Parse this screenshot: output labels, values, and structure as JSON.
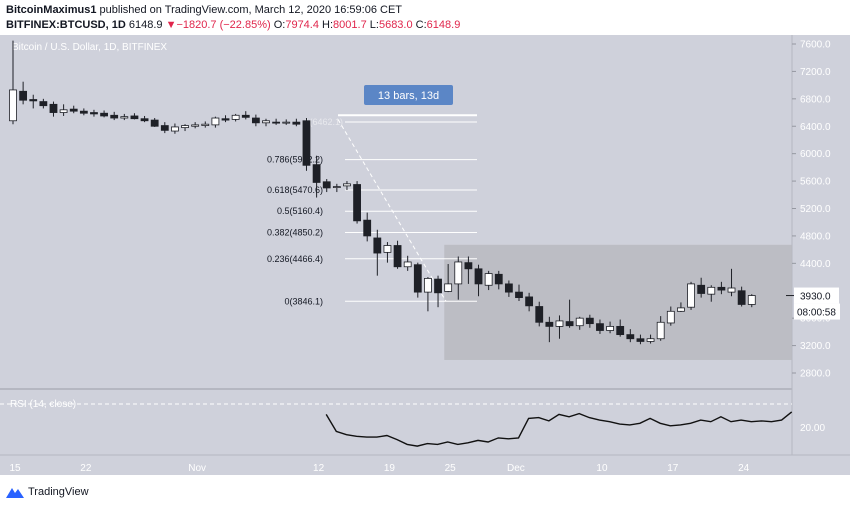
{
  "header": {
    "author": "BitcoinMaximus1",
    "published": "published on TradingView.com, March 12, 2020 16:59:06 CET",
    "symbol": "BITFINEX:BTCUSD, 1D",
    "last": "6148.9",
    "change": "−1820.7 (−22.85%)",
    "o_label": "O:",
    "o": "7974.4",
    "h_label": "H:",
    "h": "8001.7",
    "l_label": "L:",
    "l": "5683.0",
    "c_label": "C:",
    "c": "6148.9"
  },
  "colors": {
    "background": "#cfd1db",
    "bearish": "#1e2027",
    "bullish": "#ffffff",
    "range_box": "#b9bac0",
    "measure_label": "#5b86c6",
    "rsi_line": "#111111",
    "red": "#e0264c"
  },
  "footer": {
    "brand": "TradingView"
  },
  "chart_data": {
    "type": "candlestick",
    "title": "Bitcoin / U.S. Dollar, 1D, BITFINEX",
    "price_axis_ticks": [
      7600,
      7200,
      6800,
      6400,
      6000,
      5600,
      5200,
      4800,
      4400,
      3600,
      3200,
      2800
    ],
    "price_axis_label_values": [
      "7600.0",
      "7200.0",
      "6800.0",
      "6400.0",
      "6000.0",
      "5600.0",
      "5200.0",
      "4800.0",
      "4400.0",
      "3600.0",
      "3200.0",
      "2800.0"
    ],
    "ylim": [
      2600,
      7800
    ],
    "time_axis_labels": [
      "15",
      "22",
      "Nov",
      "12",
      "19",
      "25",
      "Dec",
      "10",
      "17",
      "24"
    ],
    "current_price_label": "3930.0",
    "countdown_label": "08:00:58",
    "measure_label": "13 bars, 13d",
    "fib_levels": [
      {
        "label": "0.786(5912.2)",
        "value": 5912.2
      },
      {
        "label": "0.618(5470.6)",
        "value": 5470.6
      },
      {
        "label": "0.5(5160.4)",
        "value": 5160.4
      },
      {
        "label": "0.382(4850.2)",
        "value": 4850.2
      },
      {
        "label": "0.236(4466.4)",
        "value": 4466.4
      },
      {
        "label": "0(3846.1)",
        "value": 3846.1
      }
    ],
    "fib_top_label": "1(6462.1)",
    "fib_top_value": 6462.1,
    "range_box": {
      "price_top": 4670,
      "price_bottom": 2990
    },
    "candles": [
      {
        "o": 6480,
        "h": 7650,
        "l": 6430,
        "c": 6930
      },
      {
        "o": 6910,
        "h": 7050,
        "l": 6720,
        "c": 6780
      },
      {
        "o": 6790,
        "h": 6860,
        "l": 6660,
        "c": 6770
      },
      {
        "o": 6760,
        "h": 6800,
        "l": 6660,
        "c": 6700
      },
      {
        "o": 6720,
        "h": 6760,
        "l": 6540,
        "c": 6600
      },
      {
        "o": 6600,
        "h": 6720,
        "l": 6550,
        "c": 6640
      },
      {
        "o": 6650,
        "h": 6700,
        "l": 6590,
        "c": 6620
      },
      {
        "o": 6620,
        "h": 6660,
        "l": 6560,
        "c": 6590
      },
      {
        "o": 6600,
        "h": 6640,
        "l": 6540,
        "c": 6580
      },
      {
        "o": 6590,
        "h": 6630,
        "l": 6530,
        "c": 6550
      },
      {
        "o": 6560,
        "h": 6610,
        "l": 6490,
        "c": 6520
      },
      {
        "o": 6520,
        "h": 6580,
        "l": 6490,
        "c": 6540
      },
      {
        "o": 6550,
        "h": 6590,
        "l": 6500,
        "c": 6510
      },
      {
        "o": 6510,
        "h": 6550,
        "l": 6460,
        "c": 6480
      },
      {
        "o": 6490,
        "h": 6520,
        "l": 6390,
        "c": 6400
      },
      {
        "o": 6410,
        "h": 6460,
        "l": 6300,
        "c": 6340
      },
      {
        "o": 6330,
        "h": 6440,
        "l": 6290,
        "c": 6390
      },
      {
        "o": 6380,
        "h": 6430,
        "l": 6330,
        "c": 6410
      },
      {
        "o": 6400,
        "h": 6460,
        "l": 6370,
        "c": 6420
      },
      {
        "o": 6410,
        "h": 6470,
        "l": 6380,
        "c": 6430
      },
      {
        "o": 6420,
        "h": 6540,
        "l": 6380,
        "c": 6520
      },
      {
        "o": 6510,
        "h": 6560,
        "l": 6460,
        "c": 6490
      },
      {
        "o": 6500,
        "h": 6580,
        "l": 6470,
        "c": 6560
      },
      {
        "o": 6560,
        "h": 6620,
        "l": 6500,
        "c": 6530
      },
      {
        "o": 6520,
        "h": 6570,
        "l": 6400,
        "c": 6450
      },
      {
        "o": 6450,
        "h": 6510,
        "l": 6400,
        "c": 6480
      },
      {
        "o": 6460,
        "h": 6510,
        "l": 6420,
        "c": 6450
      },
      {
        "o": 6450,
        "h": 6500,
        "l": 6420,
        "c": 6460
      },
      {
        "o": 6460,
        "h": 6510,
        "l": 6400,
        "c": 6430
      },
      {
        "o": 6480,
        "h": 6520,
        "l": 5750,
        "c": 5830
      },
      {
        "o": 5840,
        "h": 5970,
        "l": 5360,
        "c": 5580
      },
      {
        "o": 5590,
        "h": 5630,
        "l": 5440,
        "c": 5500
      },
      {
        "o": 5510,
        "h": 5560,
        "l": 5440,
        "c": 5520
      },
      {
        "o": 5530,
        "h": 5600,
        "l": 5470,
        "c": 5560
      },
      {
        "o": 5550,
        "h": 5600,
        "l": 4980,
        "c": 5020
      },
      {
        "o": 5030,
        "h": 5140,
        "l": 4720,
        "c": 4800
      },
      {
        "o": 4770,
        "h": 4890,
        "l": 4220,
        "c": 4550
      },
      {
        "o": 4560,
        "h": 4710,
        "l": 4410,
        "c": 4660
      },
      {
        "o": 4660,
        "h": 4730,
        "l": 4320,
        "c": 4350
      },
      {
        "o": 4350,
        "h": 4510,
        "l": 4290,
        "c": 4420
      },
      {
        "o": 4380,
        "h": 4410,
        "l": 3900,
        "c": 3980
      },
      {
        "o": 3980,
        "h": 4200,
        "l": 3700,
        "c": 4180
      },
      {
        "o": 4170,
        "h": 4220,
        "l": 3760,
        "c": 3970
      },
      {
        "o": 3990,
        "h": 4390,
        "l": 3980,
        "c": 4100
      },
      {
        "o": 4100,
        "h": 4500,
        "l": 3870,
        "c": 4420
      },
      {
        "o": 4410,
        "h": 4500,
        "l": 4100,
        "c": 4320
      },
      {
        "o": 4320,
        "h": 4380,
        "l": 3920,
        "c": 4100
      },
      {
        "o": 4080,
        "h": 4290,
        "l": 4010,
        "c": 4250
      },
      {
        "o": 4240,
        "h": 4290,
        "l": 4020,
        "c": 4100
      },
      {
        "o": 4100,
        "h": 4150,
        "l": 3910,
        "c": 3980
      },
      {
        "o": 3980,
        "h": 4090,
        "l": 3850,
        "c": 3900
      },
      {
        "o": 3910,
        "h": 3970,
        "l": 3700,
        "c": 3780
      },
      {
        "o": 3770,
        "h": 3840,
        "l": 3480,
        "c": 3540
      },
      {
        "o": 3540,
        "h": 3620,
        "l": 3250,
        "c": 3480
      },
      {
        "o": 3480,
        "h": 3640,
        "l": 3300,
        "c": 3560
      },
      {
        "o": 3550,
        "h": 3870,
        "l": 3460,
        "c": 3490
      },
      {
        "o": 3490,
        "h": 3620,
        "l": 3430,
        "c": 3600
      },
      {
        "o": 3600,
        "h": 3650,
        "l": 3460,
        "c": 3520
      },
      {
        "o": 3520,
        "h": 3580,
        "l": 3370,
        "c": 3420
      },
      {
        "o": 3420,
        "h": 3550,
        "l": 3380,
        "c": 3480
      },
      {
        "o": 3480,
        "h": 3580,
        "l": 3330,
        "c": 3360
      },
      {
        "o": 3360,
        "h": 3440,
        "l": 3250,
        "c": 3300
      },
      {
        "o": 3300,
        "h": 3360,
        "l": 3220,
        "c": 3260
      },
      {
        "o": 3260,
        "h": 3360,
        "l": 3230,
        "c": 3300
      },
      {
        "o": 3300,
        "h": 3630,
        "l": 3270,
        "c": 3540
      },
      {
        "o": 3530,
        "h": 3770,
        "l": 3490,
        "c": 3700
      },
      {
        "o": 3700,
        "h": 3830,
        "l": 3690,
        "c": 3750
      },
      {
        "o": 3760,
        "h": 4130,
        "l": 3720,
        "c": 4100
      },
      {
        "o": 4080,
        "h": 4190,
        "l": 3900,
        "c": 3960
      },
      {
        "o": 3950,
        "h": 4080,
        "l": 3840,
        "c": 4050
      },
      {
        "o": 4050,
        "h": 4130,
        "l": 3950,
        "c": 4010
      },
      {
        "o": 3980,
        "h": 4320,
        "l": 3920,
        "c": 4040
      },
      {
        "o": 4000,
        "h": 4060,
        "l": 3770,
        "c": 3800
      },
      {
        "o": 3800,
        "h": 3950,
        "l": 3760,
        "c": 3930
      }
    ],
    "rsi": {
      "label": "RSI (14, close)",
      "axis_tick": "20.00",
      "values": [
        45,
        24,
        20,
        18,
        17,
        17,
        19,
        14,
        8,
        6,
        9,
        8,
        11,
        8,
        10,
        13,
        11,
        16,
        15,
        16,
        40,
        41,
        37,
        45,
        42,
        46,
        41,
        38,
        36,
        33,
        32,
        34,
        40,
        34,
        31,
        32,
        34,
        38,
        36,
        42,
        36,
        38,
        36,
        37,
        36,
        38,
        48
      ]
    }
  }
}
